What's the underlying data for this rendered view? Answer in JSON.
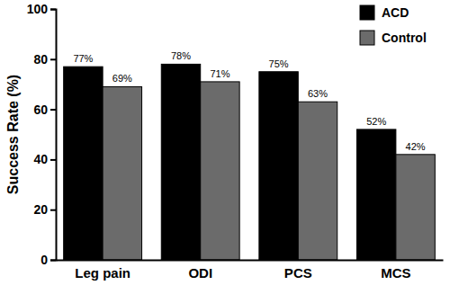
{
  "chart_data": {
    "type": "bar",
    "y_label": "Success Rate (%)",
    "categories": [
      "Leg pain",
      "ODI",
      "PCS",
      "MCS"
    ],
    "series": [
      {
        "name": "ACD",
        "color": "#000000",
        "values": [
          77,
          78,
          75,
          52
        ],
        "value_labels": [
          "77%",
          "78%",
          "75%",
          "52%"
        ]
      },
      {
        "name": "Control",
        "color": "#6b6b6b",
        "values": [
          69,
          71,
          63,
          42
        ],
        "value_labels": [
          "69%",
          "71%",
          "63%",
          "42%"
        ]
      }
    ],
    "ylim": [
      0,
      100
    ],
    "yticks": [
      0,
      20,
      40,
      60,
      80,
      100
    ],
    "grid": false,
    "legend": "upper right",
    "data_labels": true
  }
}
